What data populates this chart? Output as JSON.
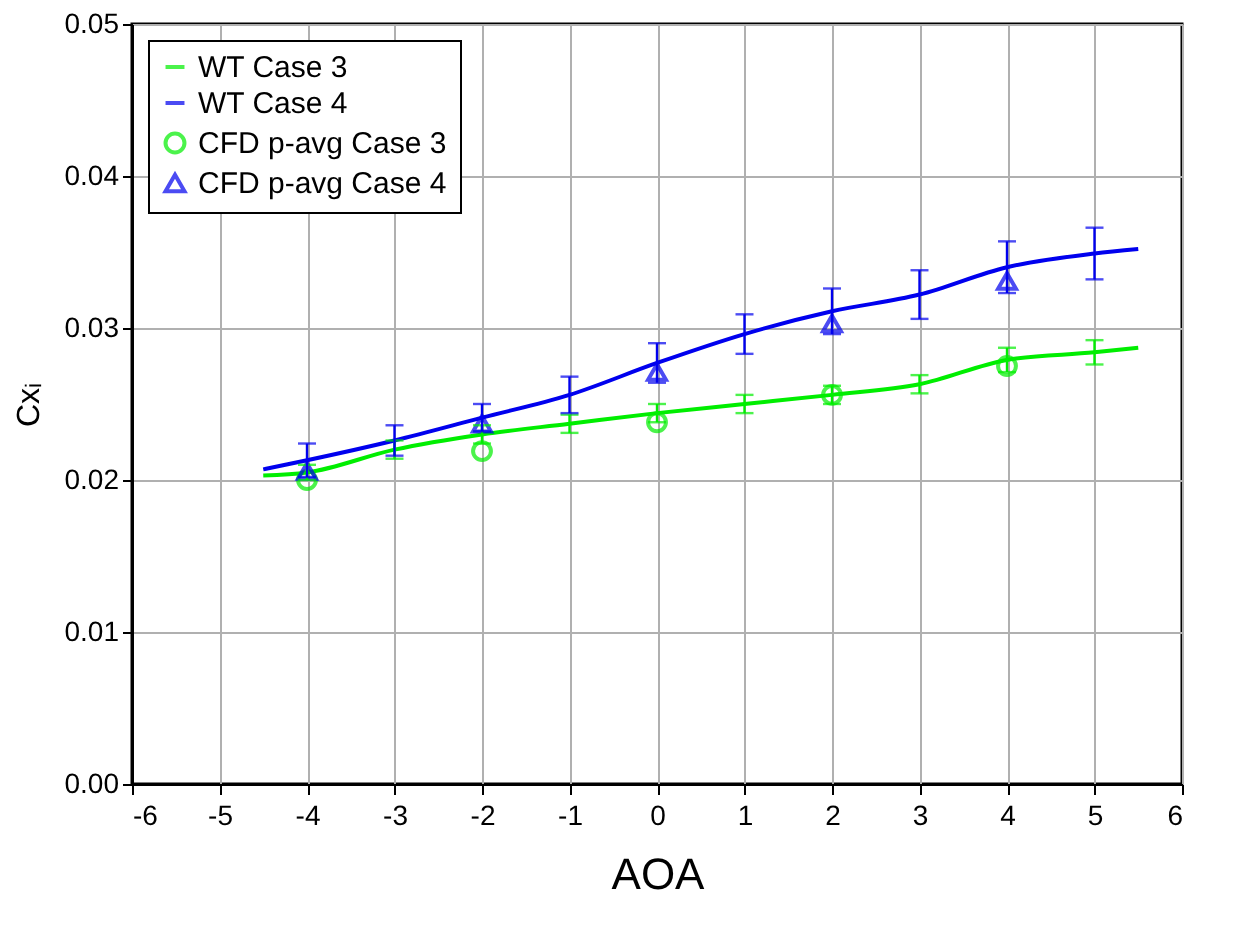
{
  "chart_data": {
    "type": "line",
    "xlabel": "AOA",
    "ylabel": "Cxᵢ",
    "xlim": [
      -6,
      6
    ],
    "xticks": [
      -6,
      -5,
      -4,
      -3,
      -2,
      -1,
      0,
      1,
      2,
      3,
      4,
      5,
      6
    ],
    "ylim": [
      0,
      0.05
    ],
    "yticks": [
      {
        "value": 0,
        "label": "0.00"
      },
      {
        "value": 0.01,
        "label": "0.01"
      },
      {
        "value": 0.02,
        "label": "0.02"
      },
      {
        "value": 0.03,
        "label": "0.03"
      },
      {
        "value": 0.04,
        "label": "0.04"
      },
      {
        "value": 0.05,
        "label": "0.05"
      }
    ],
    "grid": true,
    "legend": "top left",
    "line_style": "solid",
    "series": [
      {
        "name": "WT Case 3",
        "type": "line",
        "color": "#00ee00",
        "marker": "none",
        "x": [
          -4.5,
          -4,
          -3,
          -2,
          -1,
          0,
          1,
          2,
          3,
          4,
          5,
          5.5
        ],
        "values": [
          0.0203,
          0.0205,
          0.022,
          0.023,
          0.0237,
          0.0244,
          0.025,
          0.0256,
          0.0263,
          0.0279,
          0.0284,
          0.0287
        ],
        "errors": [
          null,
          0.0005,
          0.0006,
          0.0006,
          0.0006,
          0.0006,
          0.0006,
          0.0006,
          0.0006,
          0.0008,
          0.0008,
          null
        ]
      },
      {
        "name": "WT Case 4",
        "type": "line",
        "color": "#0000ee",
        "marker": "none",
        "x": [
          -4.5,
          -4,
          -3,
          -2,
          -1,
          0,
          1,
          2,
          3,
          4,
          5,
          5.5
        ],
        "values": [
          0.0207,
          0.0213,
          0.0226,
          0.0241,
          0.0256,
          0.0277,
          0.0296,
          0.0311,
          0.0322,
          0.034,
          0.0349,
          0.0352
        ],
        "errors": [
          null,
          0.0011,
          0.001,
          0.0009,
          0.0012,
          0.0013,
          0.0013,
          0.0015,
          0.0016,
          0.0017,
          0.0017,
          null
        ]
      },
      {
        "name": "CFD p-avg Case 3",
        "type": "scatter",
        "color": "#00ee00",
        "marker": "circle",
        "x": [
          -4,
          -2,
          0,
          2,
          4
        ],
        "values": [
          0.02,
          0.0219,
          0.0238,
          0.0256,
          0.0275
        ]
      },
      {
        "name": "CFD p-avg Case 4",
        "type": "scatter",
        "color": "#0000ee",
        "marker": "triangle",
        "x": [
          -4,
          -2,
          0,
          2,
          4
        ],
        "values": [
          0.0206,
          0.0237,
          0.0271,
          0.0303,
          0.0331
        ]
      }
    ]
  }
}
